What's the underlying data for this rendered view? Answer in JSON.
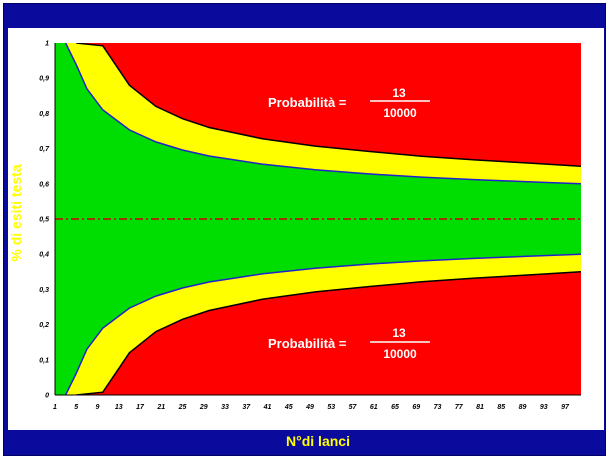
{
  "chart_data": {
    "type": "area",
    "title": "",
    "xlabel": "N°di lanci",
    "ylabel": "% di esiti testa",
    "xlim": [
      1,
      100
    ],
    "ylim": [
      0,
      1
    ],
    "x_ticks": [
      "1",
      "5",
      "9",
      "13",
      "17",
      "21",
      "25",
      "29",
      "33",
      "37",
      "41",
      "45",
      "49",
      "53",
      "57",
      "61",
      "65",
      "69",
      "73",
      "77",
      "81",
      "85",
      "89",
      "93",
      "97"
    ],
    "y_ticks": [
      "0",
      "0,1",
      "0,2",
      "0,3",
      "0,4",
      "0,5",
      "0,6",
      "0,7",
      "0,8",
      "0,9",
      "1"
    ],
    "grid": false,
    "colors": {
      "outer_region": "#ff0000",
      "middle_band": "#ffff00",
      "inner_region": "#00dd00",
      "inner_boundary": "#2222cc",
      "outer_boundary": "#000000",
      "center_line": "#cc0000"
    },
    "series": [
      {
        "name": "",
        "role": "upper-outer-boundary",
        "x": [
          5,
          10,
          15,
          20,
          25,
          30,
          40,
          50,
          60,
          70,
          80,
          90,
          100
        ],
        "y": [
          1.0,
          0.992,
          0.88,
          0.82,
          0.785,
          0.76,
          0.728,
          0.707,
          0.692,
          0.678,
          0.668,
          0.659,
          0.65
        ]
      },
      {
        "name": "",
        "role": "upper-inner-boundary",
        "x": [
          3,
          5,
          7,
          10,
          15,
          20,
          25,
          30,
          40,
          50,
          60,
          70,
          80,
          90,
          100
        ],
        "y": [
          1.0,
          0.938,
          0.87,
          0.81,
          0.753,
          0.719,
          0.696,
          0.679,
          0.656,
          0.64,
          0.628,
          0.619,
          0.612,
          0.606,
          0.6
        ]
      },
      {
        "name": "",
        "role": "center-line",
        "x": [
          1,
          100
        ],
        "y": [
          0.5,
          0.5
        ]
      },
      {
        "name": "",
        "role": "lower-inner-boundary",
        "x": [
          3,
          5,
          7,
          10,
          15,
          20,
          25,
          30,
          40,
          50,
          60,
          70,
          80,
          90,
          100
        ],
        "y": [
          0.0,
          0.062,
          0.13,
          0.19,
          0.247,
          0.281,
          0.304,
          0.321,
          0.344,
          0.36,
          0.372,
          0.381,
          0.388,
          0.394,
          0.4
        ]
      },
      {
        "name": "",
        "role": "lower-outer-boundary",
        "x": [
          5,
          10,
          15,
          20,
          25,
          30,
          40,
          50,
          60,
          70,
          80,
          90,
          100
        ],
        "y": [
          0.0,
          0.008,
          0.12,
          0.18,
          0.215,
          0.24,
          0.272,
          0.293,
          0.308,
          0.322,
          0.332,
          0.341,
          0.35
        ]
      }
    ],
    "annotations": [
      {
        "label": "Probabilità =",
        "numerator": "13",
        "denominator": "10000",
        "region": "upper"
      },
      {
        "label": "Probabilità =",
        "numerator": "13",
        "denominator": "10000",
        "region": "lower"
      }
    ]
  }
}
